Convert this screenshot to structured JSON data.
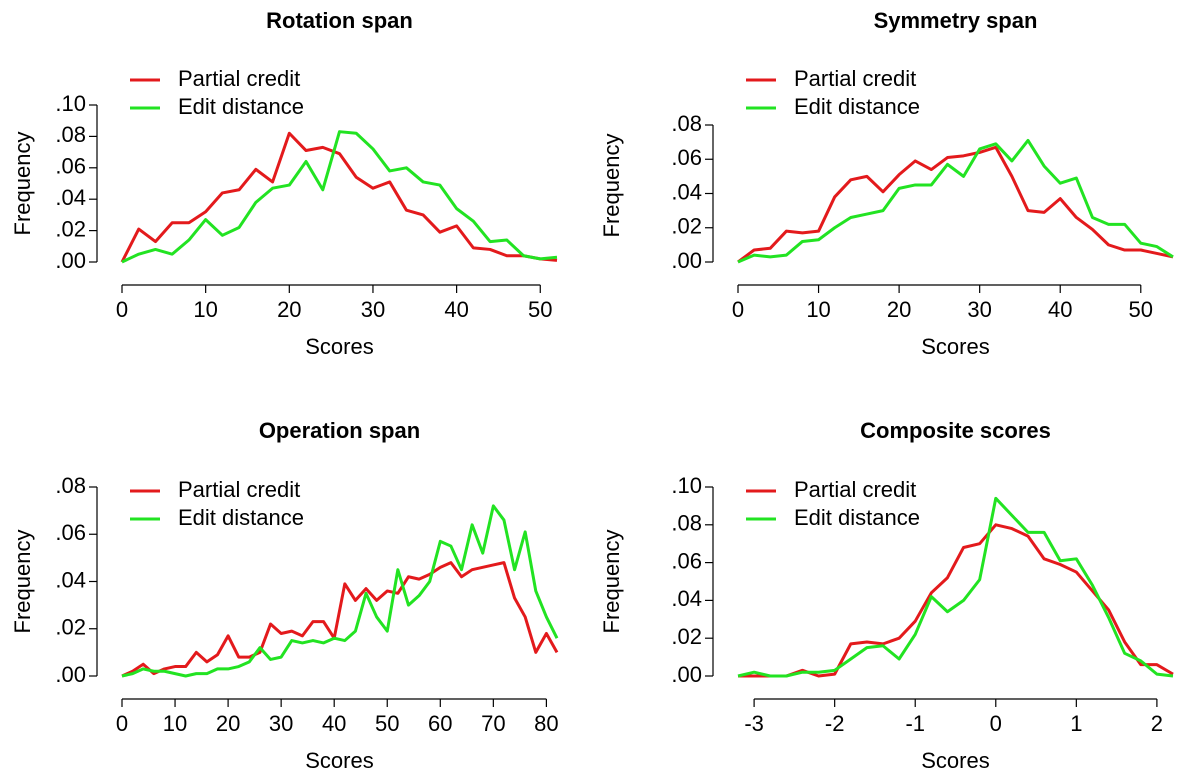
{
  "chart_data": [
    {
      "type": "line",
      "title": "Rotation span",
      "xlabel": "Scores",
      "ylabel": "Frequency",
      "legend": "topleft",
      "x": [
        0,
        2,
        4,
        6,
        8,
        10,
        12,
        14,
        16,
        18,
        20,
        22,
        24,
        26,
        28,
        30,
        32,
        34,
        36,
        38,
        40,
        42,
        44,
        46,
        48,
        50,
        52
      ],
      "series": [
        {
          "name": "Partial credit",
          "color": "#e31a1c",
          "values": [
            0,
            0.021,
            0.013,
            0.025,
            0.025,
            0.032,
            0.044,
            0.046,
            0.059,
            0.051,
            0.082,
            0.071,
            0.073,
            0.069,
            0.054,
            0.047,
            0.051,
            0.033,
            0.03,
            0.019,
            0.023,
            0.009,
            0.008,
            0.004,
            0.004,
            0.002,
            0.001
          ]
        },
        {
          "name": "Edit distance",
          "color": "#22e322",
          "values": [
            0,
            0.005,
            0.008,
            0.005,
            0.014,
            0.027,
            0.017,
            0.022,
            0.038,
            0.047,
            0.049,
            0.064,
            0.046,
            0.083,
            0.082,
            0.072,
            0.058,
            0.06,
            0.051,
            0.049,
            0.034,
            0.026,
            0.013,
            0.014,
            0.004,
            0.002,
            0.003
          ]
        }
      ],
      "xlim": [
        0,
        52
      ],
      "ylim": [
        0,
        0.1
      ],
      "xticks": [
        0,
        10,
        20,
        30,
        40,
        50
      ],
      "yticks": [
        {
          "value": 0,
          "label": ".00"
        },
        {
          "value": 0.02,
          "label": ".02"
        },
        {
          "value": 0.04,
          "label": ".04"
        },
        {
          "value": 0.06,
          "label": ".06"
        },
        {
          "value": 0.08,
          "label": ".08"
        },
        {
          "value": 0.1,
          "label": ".10"
        }
      ]
    },
    {
      "type": "line",
      "title": "Symmetry span",
      "xlabel": "Scores",
      "ylabel": "Frequency",
      "legend": "topleft",
      "x": [
        0,
        2,
        4,
        6,
        8,
        10,
        12,
        14,
        16,
        18,
        20,
        22,
        24,
        26,
        28,
        30,
        32,
        34,
        36,
        38,
        40,
        42,
        44,
        46,
        48,
        50,
        52,
        54
      ],
      "series": [
        {
          "name": "Partial credit",
          "color": "#e31a1c",
          "values": [
            0,
            0.007,
            0.008,
            0.018,
            0.017,
            0.018,
            0.038,
            0.048,
            0.05,
            0.041,
            0.051,
            0.059,
            0.054,
            0.061,
            0.062,
            0.064,
            0.067,
            0.05,
            0.03,
            0.029,
            0.037,
            0.026,
            0.019,
            0.01,
            0.007,
            0.007,
            0.005,
            0.003
          ]
        },
        {
          "name": "Edit distance",
          "color": "#22e322",
          "values": [
            0,
            0.004,
            0.003,
            0.004,
            0.012,
            0.013,
            0.02,
            0.026,
            0.028,
            0.03,
            0.043,
            0.045,
            0.045,
            0.057,
            0.05,
            0.066,
            0.069,
            0.059,
            0.071,
            0.056,
            0.046,
            0.049,
            0.026,
            0.022,
            0.022,
            0.011,
            0.009,
            0.003
          ]
        }
      ],
      "xlim": [
        0,
        54
      ],
      "ylim": [
        0,
        0.08
      ],
      "xticks": [
        0,
        10,
        20,
        30,
        40,
        50
      ],
      "yticks": [
        {
          "value": 0,
          "label": ".00"
        },
        {
          "value": 0.02,
          "label": ".02"
        },
        {
          "value": 0.04,
          "label": ".04"
        },
        {
          "value": 0.06,
          "label": ".06"
        },
        {
          "value": 0.08,
          "label": ".08"
        }
      ]
    },
    {
      "type": "line",
      "title": "Operation span",
      "xlabel": "Scores",
      "ylabel": "Frequency",
      "legend": "topleft",
      "x": [
        0,
        2,
        4,
        6,
        8,
        10,
        12,
        14,
        16,
        18,
        20,
        22,
        24,
        26,
        28,
        30,
        32,
        34,
        36,
        38,
        40,
        42,
        44,
        46,
        48,
        50,
        52,
        54,
        56,
        58,
        60,
        62,
        64,
        66,
        68,
        70,
        72,
        74,
        76,
        78,
        80,
        82
      ],
      "series": [
        {
          "name": "Partial credit",
          "color": "#e31a1c",
          "values": [
            0,
            0.002,
            0.005,
            0.001,
            0.003,
            0.004,
            0.004,
            0.01,
            0.006,
            0.009,
            0.017,
            0.008,
            0.008,
            0.01,
            0.022,
            0.018,
            0.019,
            0.017,
            0.023,
            0.023,
            0.016,
            0.039,
            0.032,
            0.037,
            0.032,
            0.036,
            0.035,
            0.042,
            0.041,
            0.043,
            0.046,
            0.048,
            0.042,
            0.045,
            0.046,
            0.047,
            0.048,
            0.033,
            0.025,
            0.01,
            0.018,
            0.01
          ]
        },
        {
          "name": "Edit distance",
          "color": "#22e322",
          "values": [
            0,
            0.001,
            0.003,
            0.002,
            0.002,
            0.001,
            0,
            0.001,
            0.001,
            0.003,
            0.003,
            0.004,
            0.006,
            0.012,
            0.007,
            0.008,
            0.015,
            0.014,
            0.015,
            0.014,
            0.016,
            0.015,
            0.019,
            0.035,
            0.025,
            0.019,
            0.045,
            0.03,
            0.034,
            0.04,
            0.057,
            0.055,
            0.045,
            0.064,
            0.052,
            0.072,
            0.066,
            0.045,
            0.061,
            0.036,
            0.025,
            0.016
          ]
        }
      ],
      "xlim": [
        0,
        82
      ],
      "ylim": [
        0,
        0.08
      ],
      "xticks": [
        0,
        10,
        20,
        30,
        40,
        50,
        60,
        70,
        80
      ],
      "yticks": [
        {
          "value": 0,
          "label": ".00"
        },
        {
          "value": 0.02,
          "label": ".02"
        },
        {
          "value": 0.04,
          "label": ".04"
        },
        {
          "value": 0.06,
          "label": ".06"
        },
        {
          "value": 0.08,
          "label": ".08"
        }
      ]
    },
    {
      "type": "line",
      "title": "Composite scores",
      "xlabel": "Scores",
      "ylabel": "Frequency",
      "legend": "topleft",
      "x": [
        -3.2,
        -3,
        -2.8,
        -2.6,
        -2.4,
        -2.2,
        -2,
        -1.8,
        -1.6,
        -1.4,
        -1.2,
        -1,
        -0.8,
        -0.6,
        -0.4,
        -0.2,
        0,
        0.2,
        0.4,
        0.6,
        0.8,
        1,
        1.2,
        1.4,
        1.6,
        1.8,
        2,
        2.2
      ],
      "series": [
        {
          "name": "Partial credit",
          "color": "#e31a1c",
          "values": [
            0,
            0,
            0,
            0,
            0.003,
            0,
            0.001,
            0.017,
            0.018,
            0.017,
            0.02,
            0.029,
            0.044,
            0.052,
            0.068,
            0.07,
            0.08,
            0.078,
            0.074,
            0.062,
            0.059,
            0.055,
            0.045,
            0.035,
            0.018,
            0.006,
            0.006,
            0.001
          ]
        },
        {
          "name": "Edit distance",
          "color": "#22e322",
          "values": [
            0,
            0.002,
            0,
            0,
            0.002,
            0.002,
            0.003,
            0.009,
            0.015,
            0.016,
            0.009,
            0.022,
            0.042,
            0.034,
            0.04,
            0.051,
            0.094,
            0.085,
            0.076,
            0.076,
            0.061,
            0.062,
            0.048,
            0.031,
            0.012,
            0.008,
            0.001,
            0
          ]
        }
      ],
      "xlim": [
        -3.2,
        2.2
      ],
      "ylim": [
        0,
        0.1
      ],
      "xticks": [
        -3,
        -2,
        -1,
        0,
        1,
        2
      ],
      "yticks": [
        {
          "value": 0,
          "label": ".00"
        },
        {
          "value": 0.02,
          "label": ".02"
        },
        {
          "value": 0.04,
          "label": ".04"
        },
        {
          "value": 0.06,
          "label": ".06"
        },
        {
          "value": 0.08,
          "label": ".08"
        },
        {
          "value": 0.1,
          "label": ".10"
        }
      ]
    }
  ]
}
